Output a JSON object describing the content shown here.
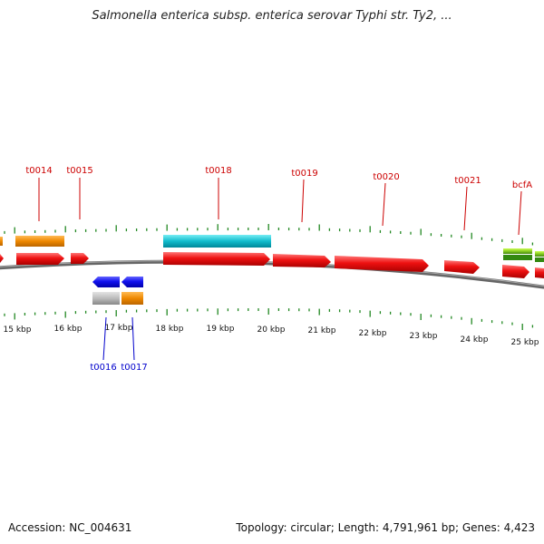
{
  "title": "Salmonella enterica subsp. enterica serovar Typhi str. Ty2, ...",
  "footer": {
    "accession": "Accession: NC_004631",
    "summary": "Topology: circular; Length: 4,791,961 bp; Genes: 4,423"
  },
  "scale": {
    "unit": "kbp",
    "labels": [
      "15 kbp",
      "16 kbp",
      "17 kbp",
      "18 kbp",
      "19 kbp",
      "20 kbp",
      "21 kbp",
      "22 kbp",
      "23 kbp",
      "24 kbp",
      "25 kbp"
    ]
  },
  "gene_labels_top": [
    "t0014",
    "t0015",
    "t0018",
    "t0019",
    "t0020",
    "t0021",
    "bcfA"
  ],
  "gene_labels_bottom": [
    "t0016",
    "t0017"
  ],
  "colors": {
    "forward_gene": "#ee1111",
    "reverse_gene": "#1111ee",
    "orange_feature": "#ee8800",
    "cyan_feature": "#11bbcc",
    "gray_feature": "#bbbbbb",
    "green_feature": "#88cc22",
    "backbone": "#777777",
    "ticks": "#228822"
  }
}
